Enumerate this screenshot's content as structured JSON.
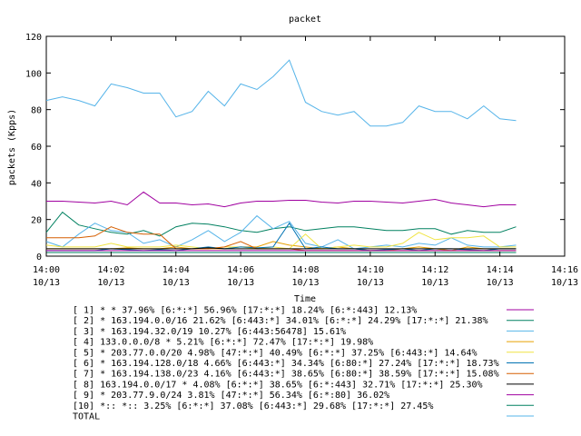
{
  "chart_data": {
    "type": "line",
    "title": "packet",
    "xlabel": "Time",
    "ylabel": "packets (Kpps)",
    "ylim": [
      0,
      120
    ],
    "yticks": [
      "0",
      "20",
      "40",
      "60",
      "80",
      "100",
      "120"
    ],
    "xlim": [
      0,
      16
    ],
    "x_unit": "minutes after 14:00 on 10/13",
    "xticks": [
      {
        "time": "14:00",
        "date": "10/13"
      },
      {
        "time": "14:02",
        "date": "10/13"
      },
      {
        "time": "14:04",
        "date": "10/13"
      },
      {
        "time": "14:06",
        "date": "10/13"
      },
      {
        "time": "14:08",
        "date": "10/13"
      },
      {
        "time": "14:10",
        "date": "10/13"
      },
      {
        "time": "14:12",
        "date": "10/13"
      },
      {
        "time": "14:14",
        "date": "10/13"
      },
      {
        "time": "14:16",
        "date": "10/13"
      }
    ],
    "grid": false,
    "legend_position": "bottom",
    "x": [
      0,
      0.5,
      1,
      1.5,
      2,
      2.5,
      3,
      3.5,
      4,
      4.5,
      5,
      5.5,
      6,
      6.5,
      7,
      7.5,
      8,
      8.5,
      9,
      9.5,
      10,
      10.5,
      11,
      11.5,
      12,
      12.5,
      13,
      13.5,
      14,
      14.5
    ],
    "series": [
      {
        "label": "[ 1] * * 37.96%  [6:*:*] 56.96% [17:*:*] 18.24% [6:*:443] 12.13%",
        "color": "#a000a0",
        "values": [
          30,
          30,
          29.5,
          29,
          30,
          28,
          35,
          29,
          29,
          28,
          28.5,
          27,
          29,
          30,
          30,
          30.5,
          30.5,
          29.5,
          29,
          30,
          30,
          29.5,
          29,
          30,
          31,
          29,
          28,
          27,
          28,
          28
        ]
      },
      {
        "label": "[ 2] * 163.194.0.0/16 21.62%  [6:443:*] 34.01% [6:*:*] 24.29% [17:*:*] 21.38%",
        "color": "#008060",
        "values": [
          13,
          24,
          17,
          15,
          13,
          12,
          14,
          11,
          16,
          18,
          17.5,
          16,
          14,
          13,
          15,
          16,
          14,
          15,
          16,
          16,
          15,
          14,
          14,
          15,
          15,
          12,
          14,
          13,
          13,
          16
        ]
      },
      {
        "label": "[ 3] * 163.194.32.0/19 10.27%  [6:443:56478] 15.61%",
        "color": "#56b4e9",
        "values": [
          8,
          5,
          12,
          18,
          14,
          13,
          7,
          9,
          5,
          9,
          14,
          8,
          13,
          22,
          15,
          19,
          7,
          5,
          9,
          4,
          5,
          6,
          5,
          7,
          6,
          10,
          6,
          5,
          5,
          6
        ]
      },
      {
        "label": "[ 4] 133.0.0.0/8 * 5.21%  [6:*:*] 72.47% [17:*:*] 19.98%",
        "color": "#e6a000",
        "values": [
          4,
          4,
          4,
          4,
          4,
          4.5,
          4,
          4,
          5,
          4,
          4,
          4,
          5,
          5,
          8,
          6,
          5,
          4,
          5,
          4,
          3,
          3,
          4,
          5,
          4,
          3,
          5,
          4,
          4,
          4
        ]
      },
      {
        "label": "[ 5] * 203.77.0.0/20 4.98%  [47:*:*] 40.49% [6:*:*] 37.25% [6:443:*] 14.64%",
        "color": "#f0e442",
        "values": [
          6,
          5,
          5,
          5,
          7,
          5,
          5,
          5,
          6,
          5,
          4,
          5,
          5,
          4,
          5,
          4,
          12,
          4,
          5,
          6,
          5,
          5,
          7,
          13,
          9,
          10,
          10,
          11,
          5,
          5
        ]
      },
      {
        "label": "[ 6] * 163.194.128.0/18 4.66%  [6:443:*] 34.34% [6:80:*] 27.24% [17:*:*] 18.73%",
        "color": "#0072b2",
        "values": [
          3,
          3,
          3,
          3,
          4,
          3.5,
          3,
          3.5,
          3,
          4,
          5,
          4,
          5,
          4.5,
          5,
          18,
          4,
          5,
          4,
          4,
          3,
          3.5,
          4,
          3,
          4,
          4,
          3.5,
          3,
          4,
          4
        ]
      },
      {
        "label": "[ 7] * 163.194.138.0/23 4.16%  [6:443:*] 38.65% [6:80:*] 38.59% [17:*:*] 15.08%",
        "color": "#d55e00",
        "values": [
          10,
          10,
          10,
          11,
          16,
          13,
          12,
          12,
          4,
          4,
          4,
          5,
          8,
          4,
          4,
          4,
          3,
          3,
          3,
          3,
          3,
          3,
          3,
          3,
          3,
          3,
          3,
          3,
          3,
          3
        ]
      },
      {
        "label": "[ 8] 163.194.0.0/17 * 4.08%  [6:*:*] 38.65% [6:*:443] 32.71% [17:*:*] 25.30%",
        "color": "#000000",
        "values": [
          4,
          4,
          4,
          4,
          4,
          4,
          4,
          4,
          4,
          4,
          4.5,
          4,
          4,
          4,
          4,
          4,
          4,
          4,
          4,
          4,
          4,
          4,
          4,
          4,
          4,
          4,
          4,
          4,
          4,
          4
        ]
      },
      {
        "label": "[ 9] * 203.77.9.0/24 3.81%  [47:*:*] 56.34% [6:*:80] 36.02%",
        "color": "#a000a0",
        "values": [
          3,
          3,
          3,
          3,
          3,
          3,
          3,
          3,
          3,
          3,
          3,
          3,
          3,
          3,
          3,
          3,
          3,
          3,
          3,
          3,
          3,
          3,
          3,
          3,
          3,
          3,
          3,
          3,
          3,
          3
        ]
      },
      {
        "label": "[10] *:: *:: 3.25%  [6:*:*] 37.08% [6:443:*] 29.68% [17:*:*] 27.45%",
        "color": "#008060",
        "values": [
          2,
          2,
          2,
          2,
          2,
          2,
          2,
          2,
          2,
          2,
          2,
          2,
          2,
          2,
          2,
          2,
          2,
          2,
          2,
          2,
          2,
          2,
          2,
          2,
          2,
          2,
          2,
          2,
          2,
          2
        ]
      },
      {
        "label": "TOTAL",
        "color": "#56b4e9",
        "values": [
          85,
          87,
          85,
          82,
          94,
          92,
          89,
          89,
          76,
          79,
          90,
          82,
          94,
          91,
          98,
          107,
          84,
          79,
          77,
          79,
          71,
          71,
          73,
          82,
          79,
          79,
          75,
          82,
          75,
          74
        ]
      }
    ]
  }
}
